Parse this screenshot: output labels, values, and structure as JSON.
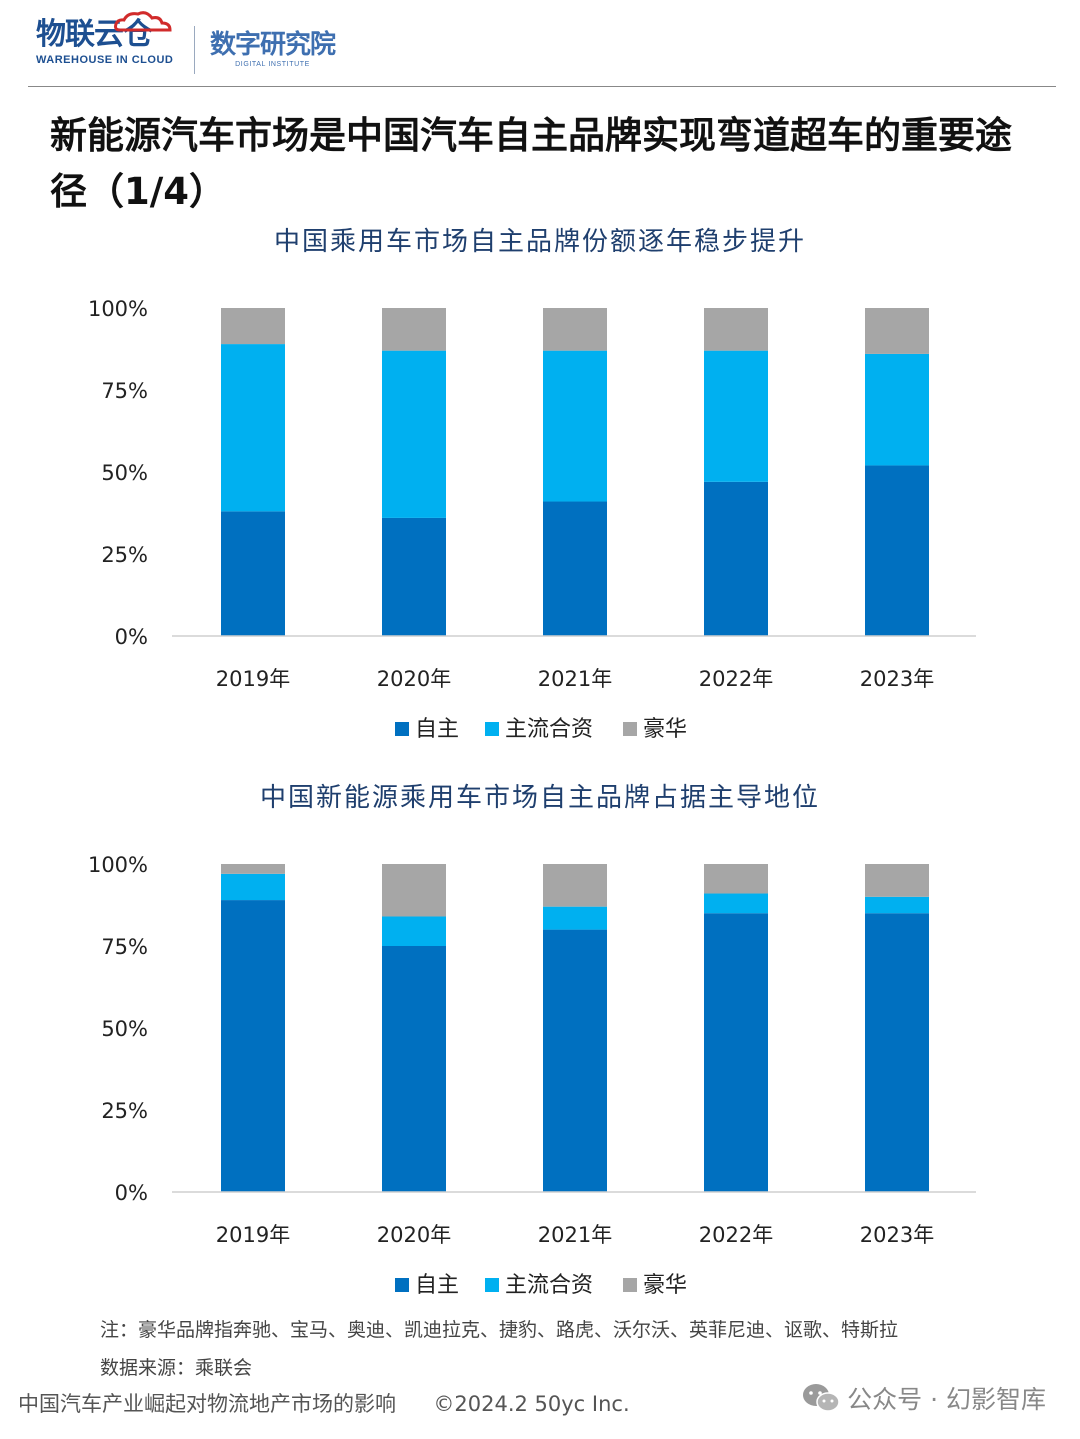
{
  "header": {
    "logo_left_cn": "物联云仓",
    "logo_left_en": "WAREHOUSE IN CLOUD",
    "logo_right_cn": "数字研究院",
    "logo_right_en": "DIGITAL INSTITUTE"
  },
  "page_title": "新能源汽车市场是中国汽车自主品牌实现弯道超车的重要途径（1/4）",
  "colors": {
    "title_blue": "#1f3f6e",
    "domestic": "#0070c0",
    "mainstream_jv": "#00b0f0",
    "luxury": "#a6a6a6"
  },
  "chart_data": [
    {
      "type": "bar",
      "stacked": true,
      "percent": true,
      "title": "中国乘用车市场自主品牌份额逐年稳步提升",
      "categories": [
        "2019年",
        "2020年",
        "2021年",
        "2022年",
        "2023年"
      ],
      "y_ticks": [
        "0%",
        "25%",
        "50%",
        "75%",
        "100%"
      ],
      "ylim": [
        0,
        100
      ],
      "grid": false,
      "legend_position": "bottom-center",
      "series": [
        {
          "name": "自主",
          "color": "#0070c0",
          "values": [
            38,
            36,
            41,
            47,
            52
          ]
        },
        {
          "name": "主流合资",
          "color": "#00b0f0",
          "values": [
            51,
            51,
            46,
            40,
            34
          ]
        },
        {
          "name": "豪华",
          "color": "#a6a6a6",
          "values": [
            11,
            13,
            13,
            13,
            14
          ]
        }
      ]
    },
    {
      "type": "bar",
      "stacked": true,
      "percent": true,
      "title": "中国新能源乘用车市场自主品牌占据主导地位",
      "categories": [
        "2019年",
        "2020年",
        "2021年",
        "2022年",
        "2023年"
      ],
      "y_ticks": [
        "0%",
        "25%",
        "50%",
        "75%",
        "100%"
      ],
      "ylim": [
        0,
        100
      ],
      "grid": false,
      "legend_position": "bottom-center",
      "series": [
        {
          "name": "自主",
          "color": "#0070c0",
          "values": [
            89,
            75,
            80,
            85,
            85
          ]
        },
        {
          "name": "主流合资",
          "color": "#00b0f0",
          "values": [
            8,
            9,
            7,
            6,
            5
          ]
        },
        {
          "name": "豪华",
          "color": "#a6a6a6",
          "values": [
            3,
            16,
            13,
            9,
            10
          ]
        }
      ]
    }
  ],
  "notes": {
    "luxury_note": "注：豪华品牌指奔驰、宝马、奥迪、凯迪拉克、捷豹、路虎、沃尔沃、英菲尼迪、讴歌、特斯拉",
    "source": "数据来源：乘联会"
  },
  "footer": {
    "left_text": "中国汽车产业崛起对物流地产市场的影响",
    "copyright": "©2024.2 50yc Inc.",
    "watermark": "公众号 · 幻影智库",
    "watermark_icon": "wechat-icon"
  }
}
